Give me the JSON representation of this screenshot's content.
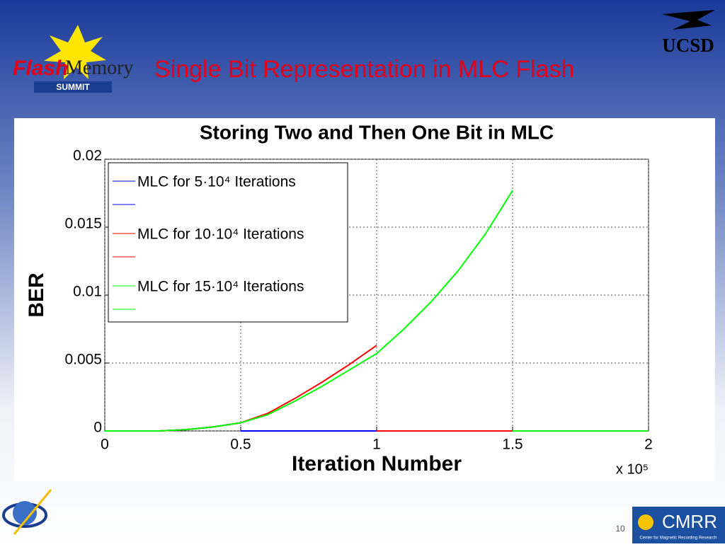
{
  "slide": {
    "title": "Single Bit Representation in MLC Flash",
    "logo_flash": "Flash",
    "logo_memory": "Memory",
    "logo_summit": "SUMMIT",
    "logo_ucsd": "UCSD",
    "logo_cmrr": "CMRR",
    "logo_cmrr_sub": "Center for Magnetic Recording Research",
    "page_number": "10"
  },
  "chart_data": {
    "type": "line",
    "title": "Storing Two and Then One Bit in MLC",
    "xlabel": "Iteration Number",
    "ylabel": "BER",
    "x_multiplier": "x 10⁵",
    "xlim": [
      0,
      2
    ],
    "xticks": [
      0,
      0.5,
      1,
      1.5,
      2
    ],
    "ylim": [
      0,
      0.02
    ],
    "yticks": [
      0,
      0.005,
      0.01,
      0.015,
      0.02
    ],
    "grid": true,
    "legend": "upper left",
    "series": [
      {
        "name": "MLC for 5·10⁴ Iterations",
        "color": "#0000ff",
        "x": [
          0,
          0.1,
          0.2,
          0.3,
          0.4,
          0.5,
          null,
          0.5,
          1.0
        ],
        "values": [
          0,
          0,
          0,
          0.0001,
          0.0003,
          0.0006,
          null,
          0,
          0
        ]
      },
      {
        "name": "MLC for 10·10⁴ Iterations",
        "color": "#ff0000",
        "x": [
          0,
          0.1,
          0.2,
          0.3,
          0.4,
          0.5,
          0.6,
          0.7,
          0.8,
          0.9,
          1.0,
          null,
          1.0,
          1.5
        ],
        "values": [
          0,
          0,
          0,
          0.0001,
          0.0003,
          0.0006,
          0.0013,
          0.0024,
          0.0036,
          0.0049,
          0.0063,
          null,
          0,
          0
        ]
      },
      {
        "name": "MLC for 15·10⁴ Iterations",
        "color": "#00ff00",
        "x": [
          0,
          0.1,
          0.2,
          0.3,
          0.4,
          0.5,
          0.6,
          0.7,
          0.8,
          0.9,
          1.0,
          1.1,
          1.2,
          1.3,
          1.4,
          1.5,
          null,
          1.5,
          2.0
        ],
        "values": [
          0,
          0,
          0,
          0.0001,
          0.0003,
          0.0006,
          0.0012,
          0.0022,
          0.0033,
          0.0045,
          0.0057,
          0.0075,
          0.0095,
          0.0118,
          0.0145,
          0.0177,
          null,
          0,
          0
        ]
      }
    ]
  }
}
